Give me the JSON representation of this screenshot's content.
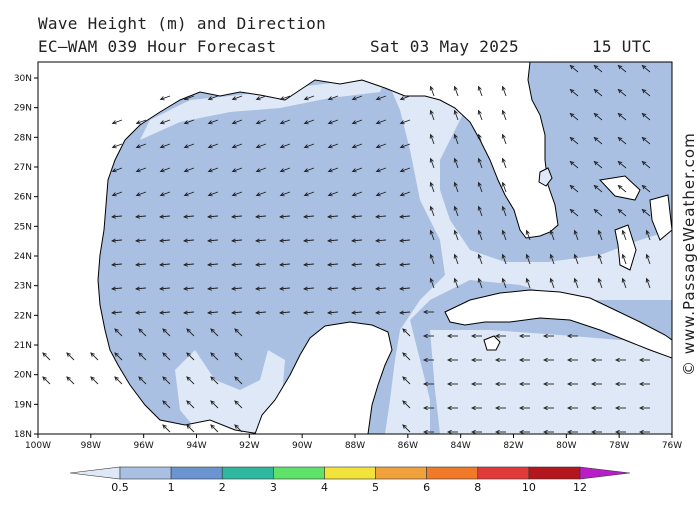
{
  "header": {
    "line1": "Wave Height (m) and Direction",
    "model": "EC—WAM 039 Hour Forecast",
    "date": "Sat 03 May 2025",
    "time": "15 UTC"
  },
  "watermark": "© www.PassageWeather.com",
  "axes": {
    "lon_labels": [
      "100W",
      "98W",
      "96W",
      "94W",
      "92W",
      "90W",
      "88W",
      "86W",
      "84W",
      "82W",
      "80W",
      "78W",
      "76W"
    ],
    "lat_labels": [
      "30N",
      "29N",
      "28N",
      "27N",
      "26N",
      "25N",
      "24N",
      "23N",
      "22N",
      "21N",
      "20N",
      "19N",
      "18N"
    ]
  },
  "colorbar": {
    "labels": [
      "0.5",
      "1",
      "2",
      "3",
      "4",
      "5",
      "6",
      "8",
      "10",
      "12"
    ],
    "colors": [
      "#dfe8f6",
      "#a9c0e3",
      "#6b94d1",
      "#2fb7a0",
      "#5fe26a",
      "#f2e23c",
      "#f2a23c",
      "#f07a2a",
      "#e03a3a",
      "#b4161e",
      "#b81ec8"
    ]
  },
  "colors": {
    "sea_low": "#dfe8f6",
    "sea_mid": "#a9c0e3",
    "land": "#ffffff",
    "coast": "#000000",
    "arrow": "#222222"
  }
}
